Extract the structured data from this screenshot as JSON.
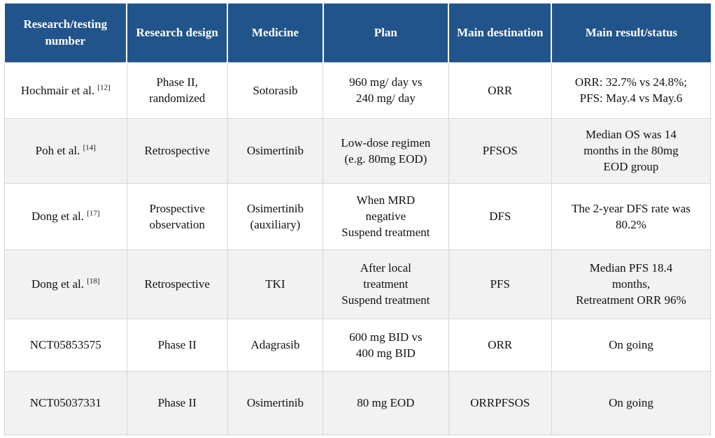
{
  "colors": {
    "header_bg": "#21548A",
    "header_text": "#FFFFFF",
    "stripe_bg": "#F2F2F2",
    "border": "#D6D6D6",
    "body_text": "#111111"
  },
  "table": {
    "columns": [
      "Research/testing number",
      "Research design",
      "Medicine",
      "Plan",
      "Main destination",
      "Main result/status"
    ],
    "rows": [
      {
        "cells": [
          {
            "lines": [
              "Hochmair et al."
            ],
            "ref": "[12]"
          },
          {
            "lines": [
              "Phase II,",
              "randomized"
            ]
          },
          {
            "lines": [
              "Sotorasib"
            ]
          },
          {
            "lines": [
              "960 mg/ day vs",
              "240 mg/ day"
            ]
          },
          {
            "lines": [
              "ORR"
            ]
          },
          {
            "lines": [
              "ORR: 32.7% vs 24.8%;",
              "PFS: May.4 vs May.6"
            ]
          }
        ]
      },
      {
        "cells": [
          {
            "lines": [
              "Poh et al."
            ],
            "ref": "[14]"
          },
          {
            "lines": [
              "Retrospective"
            ]
          },
          {
            "lines": [
              "Osimertinib"
            ]
          },
          {
            "lines": [
              "Low-dose regimen",
              "(e.g. 80mg EOD)"
            ]
          },
          {
            "lines": [
              "PFSOS"
            ]
          },
          {
            "lines": [
              "Median OS was 14",
              "months in the 80mg",
              "EOD group"
            ]
          }
        ]
      },
      {
        "cells": [
          {
            "lines": [
              "Dong et al."
            ],
            "ref": "[17]"
          },
          {
            "lines": [
              "Prospective",
              "observation"
            ]
          },
          {
            "lines": [
              "Osimertinib",
              "(auxiliary)"
            ]
          },
          {
            "lines": [
              "When MRD",
              "negative",
              "Suspend treatment"
            ]
          },
          {
            "lines": [
              "DFS"
            ]
          },
          {
            "lines": [
              "The 2-year DFS rate was",
              "80.2%"
            ]
          }
        ]
      },
      {
        "cells": [
          {
            "lines": [
              "Dong et al."
            ],
            "ref": "[18]"
          },
          {
            "lines": [
              "Retrospective"
            ]
          },
          {
            "lines": [
              "TKI"
            ]
          },
          {
            "lines": [
              "After local",
              "treatment",
              "Suspend treatment"
            ]
          },
          {
            "lines": [
              "PFS"
            ]
          },
          {
            "lines": [
              "Median PFS 18.4",
              "months,",
              "Retreatment ORR 96%"
            ]
          }
        ]
      },
      {
        "cells": [
          {
            "lines": [
              "NCT05853575"
            ]
          },
          {
            "lines": [
              "Phase II"
            ]
          },
          {
            "lines": [
              "Adagrasib"
            ]
          },
          {
            "lines": [
              "600 mg BID vs",
              "400 mg BID"
            ]
          },
          {
            "lines": [
              "ORR"
            ]
          },
          {
            "lines": [
              "On going"
            ]
          }
        ]
      },
      {
        "cells": [
          {
            "lines": [
              "NCT05037331"
            ]
          },
          {
            "lines": [
              "Phase II"
            ]
          },
          {
            "lines": [
              "Osimertinib"
            ]
          },
          {
            "lines": [
              "80 mg EOD"
            ]
          },
          {
            "lines": [
              "ORRPFSOS"
            ]
          },
          {
            "lines": [
              "On going"
            ]
          }
        ]
      }
    ]
  }
}
